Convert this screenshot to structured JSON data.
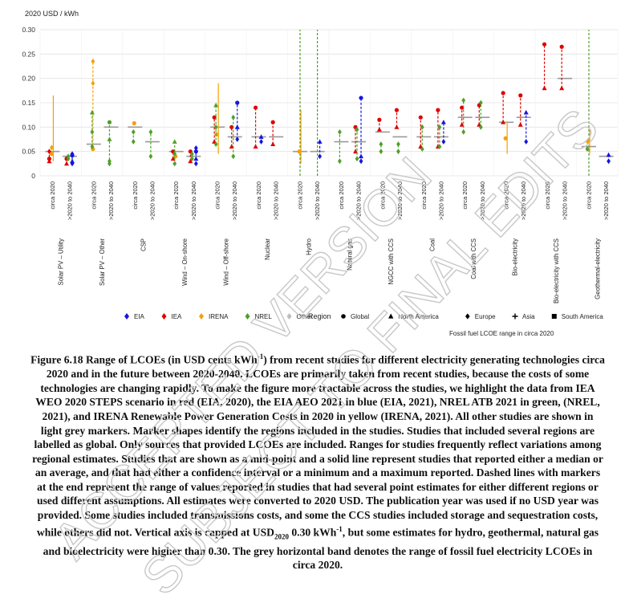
{
  "chart_data": {
    "type": "scatter",
    "ylabel": "2020 USD / kWh",
    "ylim": [
      0,
      0.3
    ],
    "yticks": [
      "0",
      "0.05",
      "0.10",
      "0.15",
      "0.20",
      "0.25",
      "0.30"
    ],
    "grid": true,
    "period_labels": [
      "circa 2020",
      ">2020 to 2040"
    ],
    "technologies": [
      {
        "name": "Solar PV – Utility",
        "hlines": [
          0.05,
          0.04
        ]
      },
      {
        "name": "Solar PV – Other",
        "hlines": [
          0.065,
          0.1
        ]
      },
      {
        "name": "CSP",
        "hlines": [
          0.1,
          0.07
        ]
      },
      {
        "name": "Wind – On-shore",
        "hlines": [
          0.05,
          0.04
        ]
      },
      {
        "name": "Wind – Off-shore",
        "hlines": [
          0.1,
          0.08
        ]
      },
      {
        "name": "Nuclear",
        "hlines": [
          0.08,
          0.08
        ]
      },
      {
        "name": "Hydro",
        "hlines": [
          0.05,
          0.05
        ]
      },
      {
        "name": "Natural gas",
        "hlines": [
          0.07,
          0.07
        ]
      },
      {
        "name": "NGCC with CCS",
        "hlines": [
          0.09,
          0.08
        ]
      },
      {
        "name": "Coal",
        "hlines": [
          0.08,
          0.08
        ]
      },
      {
        "name": "Coal with CCS",
        "hlines": [
          0.12,
          0.12
        ]
      },
      {
        "name": "Bio-electricity",
        "hlines": [
          0.11,
          0.12
        ]
      },
      {
        "name": "Bio-electricity with CCS",
        "hlines": [
          null,
          0.2
        ]
      },
      {
        "name": "Geothermal-electricity",
        "hlines": [
          0.06,
          0.04
        ]
      }
    ],
    "series": [
      {
        "name": "EIA",
        "color": "#1515e0",
        "points": [
          {
            "tech": 0,
            "period": 1,
            "values": [
              0.025,
              0.03,
              0.042,
              0.045
            ]
          },
          {
            "tech": 3,
            "period": 1,
            "values": [
              0.025,
              0.035,
              0.05,
              0.057
            ]
          },
          {
            "tech": 4,
            "period": 1,
            "values": [
              0.075,
              0.1,
              0.15
            ]
          },
          {
            "tech": 5,
            "period": 0,
            "values": [
              0.07,
              0.08
            ]
          },
          {
            "tech": 6,
            "period": 1,
            "values": [
              0.04,
              0.07
            ]
          },
          {
            "tech": 7,
            "period": 1,
            "values": [
              0.03,
              0.04,
              0.16
            ]
          },
          {
            "tech": 9,
            "period": 1,
            "values": [
              0.07,
              0.11
            ]
          },
          {
            "tech": 11,
            "period": 1,
            "values": [
              0.07,
              0.13
            ]
          },
          {
            "tech": 13,
            "period": 1,
            "values": [
              0.03,
              0.043
            ]
          }
        ]
      },
      {
        "name": "IEA",
        "color": "#e00000",
        "points": [
          {
            "tech": 0,
            "period": 0,
            "values": [
              0.03,
              0.035,
              0.05
            ]
          },
          {
            "tech": 0,
            "period": 1,
            "values": [
              0.025,
              0.035
            ]
          },
          {
            "tech": 3,
            "period": 0,
            "values": [
              0.035,
              0.05
            ]
          },
          {
            "tech": 3,
            "period": 1,
            "values": [
              0.03,
              0.05
            ]
          },
          {
            "tech": 4,
            "period": 0,
            "values": [
              0.07,
              0.12
            ]
          },
          {
            "tech": 4,
            "period": 1,
            "values": [
              0.06,
              0.1
            ]
          },
          {
            "tech": 5,
            "period": 0,
            "values": [
              0.06,
              0.14
            ]
          },
          {
            "tech": 5,
            "period": 1,
            "values": [
              0.065,
              0.11
            ]
          },
          {
            "tech": 7,
            "period": 1,
            "values": [
              0.05,
              0.1
            ]
          },
          {
            "tech": 8,
            "period": 0,
            "values": [
              0.095,
              0.115
            ]
          },
          {
            "tech": 8,
            "period": 1,
            "values": [
              0.1,
              0.135
            ]
          },
          {
            "tech": 9,
            "period": 0,
            "values": [
              0.06,
              0.12
            ]
          },
          {
            "tech": 9,
            "period": 1,
            "values": [
              0.06,
              0.135
            ]
          },
          {
            "tech": 10,
            "period": 0,
            "values": [
              0.105,
              0.14
            ]
          },
          {
            "tech": 10,
            "period": 1,
            "values": [
              0.105,
              0.145
            ]
          },
          {
            "tech": 11,
            "period": 0,
            "values": [
              0.11,
              0.17
            ]
          },
          {
            "tech": 11,
            "period": 1,
            "values": [
              0.105,
              0.165
            ]
          },
          {
            "tech": 12,
            "period": 0,
            "values": [
              0.18,
              0.27
            ]
          },
          {
            "tech": 12,
            "period": 1,
            "values": [
              0.18,
              0.265
            ]
          }
        ]
      },
      {
        "name": "IRENA",
        "color": "#f5a000",
        "points": [
          {
            "tech": 0,
            "period": 0,
            "values": [
              0.045,
              0.058
            ]
          },
          {
            "tech": 1,
            "period": 0,
            "values": [
              0.055,
              0.19,
              0.235
            ]
          },
          {
            "tech": 2,
            "period": 0,
            "values": [
              0.108
            ]
          },
          {
            "tech": 3,
            "period": 0,
            "values": [
              0.04
            ]
          },
          {
            "tech": 4,
            "period": 0,
            "values": [
              0.085
            ]
          },
          {
            "tech": 6,
            "period": 0,
            "values": [
              0.05
            ]
          },
          {
            "tech": 11,
            "period": 0,
            "values": [
              0.077
            ]
          },
          {
            "tech": 13,
            "period": 0,
            "values": [
              0.07
            ]
          }
        ]
      },
      {
        "name": "NREL",
        "color": "#4fa028",
        "points": [
          {
            "tech": 0,
            "period": 1,
            "values": [
              0.035,
              0.04
            ]
          },
          {
            "tech": 1,
            "period": 0,
            "values": [
              0.06,
              0.09,
              0.13
            ]
          },
          {
            "tech": 1,
            "period": 1,
            "values": [
              0.025,
              0.03,
              0.075,
              0.11
            ]
          },
          {
            "tech": 2,
            "period": 0,
            "values": [
              0.07,
              0.09
            ]
          },
          {
            "tech": 2,
            "period": 1,
            "values": [
              0.04,
              0.09
            ]
          },
          {
            "tech": 3,
            "period": 0,
            "values": [
              0.025,
              0.045,
              0.07
            ]
          },
          {
            "tech": 3,
            "period": 1,
            "values": [
              0.035,
              0.045
            ]
          },
          {
            "tech": 4,
            "period": 0,
            "values": [
              0.065,
              0.1,
              0.145
            ]
          },
          {
            "tech": 4,
            "period": 1,
            "values": [
              0.04,
              0.12
            ]
          },
          {
            "tech": 7,
            "period": 0,
            "values": [
              0.03,
              0.09
            ]
          },
          {
            "tech": 7,
            "period": 1,
            "values": [
              0.035,
              0.095
            ]
          },
          {
            "tech": 8,
            "period": 0,
            "values": [
              0.05,
              0.065
            ]
          },
          {
            "tech": 8,
            "period": 1,
            "values": [
              0.05,
              0.065
            ]
          },
          {
            "tech": 9,
            "period": 0,
            "values": [
              0.055,
              0.1
            ]
          },
          {
            "tech": 9,
            "period": 1,
            "values": [
              0.06,
              0.1
            ]
          },
          {
            "tech": 10,
            "period": 0,
            "values": [
              0.09,
              0.155
            ]
          },
          {
            "tech": 10,
            "period": 1,
            "values": [
              0.1,
              0.15
            ]
          },
          {
            "tech": 13,
            "period": 0,
            "values": [
              0.055
            ]
          }
        ]
      }
    ],
    "ranges": [
      {
        "tech": 0,
        "period": 0,
        "low": 0.03,
        "high": 0.165,
        "color": "#f5a000",
        "style": "solid"
      },
      {
        "tech": 4,
        "period": 0,
        "low": 0.045,
        "high": 0.19,
        "color": "#f5a000",
        "style": "solid"
      },
      {
        "tech": 6,
        "period": 0,
        "low": 0.025,
        "high": 0.135,
        "color": "#f5a000",
        "style": "solid"
      },
      {
        "tech": 6,
        "period": 0,
        "low": 0.0,
        "high": 0.3,
        "color": "#4fa028",
        "style": "dashed"
      },
      {
        "tech": 6,
        "period": 1,
        "low": 0.0,
        "high": 0.3,
        "color": "#4fa028",
        "style": "dashed"
      },
      {
        "tech": 13,
        "period": 0,
        "low": 0.0,
        "high": 0.3,
        "color": "#4fa028",
        "style": "dashed"
      },
      {
        "tech": 13,
        "period": 0,
        "low": 0.045,
        "high": 0.095,
        "color": "#f5a000",
        "style": "solid"
      },
      {
        "tech": 11,
        "period": 0,
        "low": 0.045,
        "high": 0.11,
        "color": "#f5a000",
        "style": "solid"
      }
    ],
    "legend": {
      "sources": [
        {
          "label": "EIA",
          "color": "#1515e0"
        },
        {
          "label": "IEA",
          "color": "#e00000"
        },
        {
          "label": "IRENA",
          "color": "#f5a000"
        },
        {
          "label": "NREL",
          "color": "#4fa028"
        },
        {
          "label": "Other",
          "color": "#bdbdbd"
        }
      ],
      "region_title": "Region",
      "regions": [
        "Global",
        "North America",
        "Europe",
        "Asia",
        "South America"
      ],
      "band_note": "Fossil fuel LCOE range in circa 2020"
    }
  },
  "caption": {
    "figure": "Figure 6.18",
    "text_1": " Range of LCOEs (in USD cents kWh",
    "sup_1": "-1",
    "text_2": ") from recent studies for different electricity generating technologies circa 2020 and in the future between 2020-2040. LCOEs are primarily taken from recent studies, because the costs of some technologies are changing rapidly. To make the figure more tractable across the studies, we highlight the data from IEA WEO 2020 STEPS scenario in red (EIA, 2020), the EIA AEO 2021 in blue (EIA, 2021), NREL ATB 2021 in green, (NREL, 2021), and IRENA Renewable Power Generation Costs in 2020 in yellow (IRENA, 2021). All other studies are shown in light grey markers. Marker shapes identify the regions included in the studies. Studies that included several regions are labelled as global. Only sources that provided LCOEs are included. Ranges for studies frequently reflect variations among regional estimates. Studies that are shown as a mid-point and a solid line represent studies that reported either a median or an average, and that had either a confidence interval or a minimum and a maximum reported. Dashed lines with markers at the end represent the range of values reported in studies that had several point estimates for either different regions or used different assumptions. All estimates were converted to 2020 USD. The publication year was used if no USD year was provided. Some studies included transmissions costs, and some the CCS studies included storage and sequestration costs, while others did not. Vertical axis is capped at USD",
    "sub": "2020",
    "text_3": " 0.30 kWh",
    "sup_2": "-1",
    "text_4": ", but some estimates for hydro, geothermal, natural gas and bioelectricity were higher than 0.30. The grey horizontal band denotes the range of fossil fuel electricity LCOEs in circa 2020."
  },
  "watermark": {
    "line_1": "ACCEPTED VERSION",
    "line_2": "SUBJECT TO FINAL EDITS",
    "color": "#c8c8c8"
  }
}
